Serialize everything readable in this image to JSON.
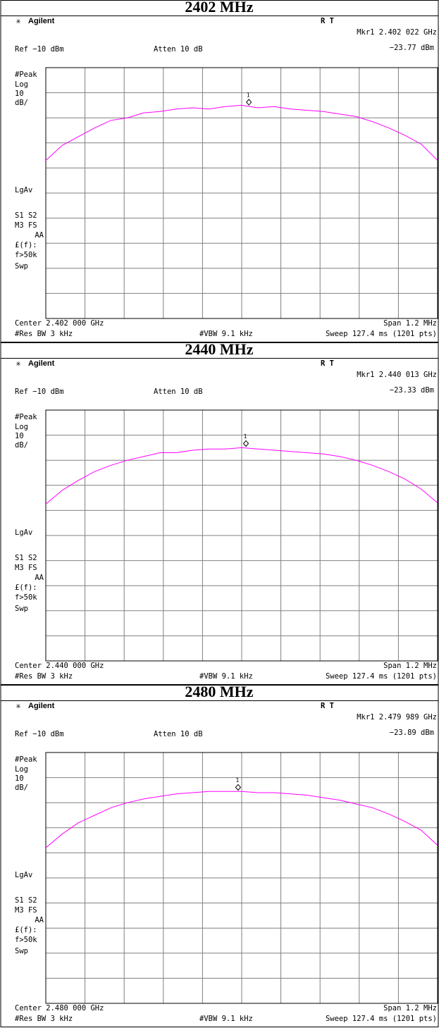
{
  "chart_data": [
    {
      "type": "line",
      "title": "2402 MHz",
      "brand": "Agilent",
      "status": "R  T",
      "marker_readout": [
        "Mkr1  2.402 022 GHz",
        "−23.77 dBm"
      ],
      "ref_level": "Ref −10 dBm",
      "atten": "Atten 10 dB",
      "side_labels": [
        "#Peak",
        "Log",
        "10",
        "dB/",
        "LgAv",
        "S1  S2",
        "M3  FS",
        "AA",
        "£(f):",
        "f>50k",
        "Swp"
      ],
      "center_label": "Center 2.402 000 GHz",
      "span_label": "Span 1.2 MHz",
      "rbw_label": "#Res BW 3 kHz",
      "vbw_label": "#VBW 9.1 kHz",
      "sweep_label": "Sweep 127.4 ms (1201 pts)",
      "x": [
        2.4014,
        2.40145,
        2.4015,
        2.40155,
        2.4016,
        2.40165,
        2.4017,
        2.40175,
        2.4018,
        2.40185,
        2.4019,
        2.40195,
        2.402,
        2.40205,
        2.4021,
        2.40215,
        2.4022,
        2.40225,
        2.4023,
        2.40235,
        2.4024,
        2.40245,
        2.4025,
        2.40255,
        2.4026
      ],
      "series": [
        {
          "color": "#ff00ff",
          "values": [
            -47,
            -41,
            -37.5,
            -34,
            -31,
            -30,
            -28,
            -27.5,
            -26.5,
            -26,
            -26.5,
            -25.5,
            -25,
            -26,
            -25.5,
            -26.5,
            -27,
            -27.5,
            -28.5,
            -29.5,
            -31.5,
            -34,
            -37,
            -40.5,
            -47
          ]
        }
      ],
      "marker": {
        "label": "1",
        "x": 2.402022,
        "y": -23.77
      },
      "xlim": [
        2.4014,
        2.4026
      ],
      "ylim": [
        -110,
        -10
      ],
      "xticks": [
        2.4014,
        2.40152,
        2.40164,
        2.40176,
        2.40188,
        2.402,
        2.40212,
        2.40224,
        2.40236,
        2.40248,
        2.4026
      ],
      "yticks": [
        -110,
        -100,
        -90,
        -80,
        -70,
        -60,
        -50,
        -40,
        -30,
        -20,
        -10
      ],
      "grid": true
    },
    {
      "type": "line",
      "title": "2440 MHz",
      "brand": "Agilent",
      "status": "R  T",
      "marker_readout": [
        "Mkr1  2.440 013 GHz",
        "−23.33 dBm"
      ],
      "ref_level": "Ref −10 dBm",
      "atten": "Atten 10 dB",
      "side_labels": [
        "#Peak",
        "Log",
        "10",
        "dB/",
        "LgAv",
        "S1  S2",
        "M3  FS",
        "AA",
        "£(f):",
        "f>50k",
        "Swp"
      ],
      "center_label": "Center 2.440 000 GHz",
      "span_label": "Span 1.2 MHz",
      "rbw_label": "#Res BW 3 kHz",
      "vbw_label": "#VBW 9.1 kHz",
      "sweep_label": "Sweep 127.4 ms (1201 pts)",
      "x": [
        2.4394,
        2.43945,
        2.4395,
        2.43955,
        2.4396,
        2.43965,
        2.4397,
        2.43975,
        2.4398,
        2.43985,
        2.4399,
        2.43995,
        2.44,
        2.44005,
        2.4401,
        2.44015,
        2.4402,
        2.44025,
        2.4403,
        2.44035,
        2.4404,
        2.44045,
        2.4405,
        2.44055,
        2.4406
      ],
      "series": [
        {
          "color": "#ff00ff",
          "values": [
            -47.5,
            -42,
            -38,
            -34.5,
            -32,
            -30,
            -28.5,
            -27,
            -27,
            -26,
            -25.5,
            -25.5,
            -25,
            -25.5,
            -26,
            -26.5,
            -27,
            -27.5,
            -28.5,
            -30,
            -32,
            -34.5,
            -37.5,
            -41.5,
            -47
          ]
        }
      ],
      "marker": {
        "label": "1",
        "x": 2.440013,
        "y": -23.33
      },
      "xlim": [
        2.4394,
        2.4406
      ],
      "ylim": [
        -110,
        -10
      ],
      "xticks": [
        2.4394,
        2.43952,
        2.43964,
        2.43976,
        2.43988,
        2.44,
        2.44012,
        2.44024,
        2.44036,
        2.44048,
        2.4406
      ],
      "yticks": [
        -110,
        -100,
        -90,
        -80,
        -70,
        -60,
        -50,
        -40,
        -30,
        -20,
        -10
      ],
      "grid": true
    },
    {
      "type": "line",
      "title": "2480 MHz",
      "brand": "Agilent",
      "status": "R  T",
      "marker_readout": [
        "Mkr1  2.479 989 GHz",
        "−23.89 dBm"
      ],
      "ref_level": "Ref −10 dBm",
      "atten": "Atten 10 dB",
      "side_labels": [
        "#Peak",
        "Log",
        "10",
        "dB/",
        "LgAv",
        "S1  S2",
        "M3  FS",
        "AA",
        "£(f):",
        "f>50k",
        "Swp"
      ],
      "center_label": "Center 2.480 000 GHz",
      "span_label": "Span 1.2 MHz",
      "rbw_label": "#Res BW 3 kHz",
      "vbw_label": "#VBW 9.1 kHz",
      "sweep_label": "Sweep 127.4 ms (1201 pts)",
      "x": [
        2.4794,
        2.47945,
        2.4795,
        2.47955,
        2.4796,
        2.47965,
        2.4797,
        2.47975,
        2.4798,
        2.47985,
        2.4799,
        2.47995,
        2.48,
        2.48005,
        2.4801,
        2.48015,
        2.4802,
        2.48025,
        2.4803,
        2.48035,
        2.4804,
        2.48045,
        2.4805,
        2.48055,
        2.4806
      ],
      "series": [
        {
          "color": "#ff00ff",
          "values": [
            -48,
            -42.5,
            -38,
            -35,
            -32,
            -30,
            -28.5,
            -27.5,
            -26.5,
            -26,
            -25.5,
            -25.5,
            -25.5,
            -26,
            -26,
            -26.5,
            -27,
            -28,
            -29,
            -30.5,
            -32,
            -34.5,
            -37.5,
            -41,
            -47
          ]
        }
      ],
      "marker": {
        "label": "1",
        "x": 2.479989,
        "y": -23.89
      },
      "xlim": [
        2.4794,
        2.4806
      ],
      "ylim": [
        -110,
        -10
      ],
      "xticks": [
        2.4794,
        2.47952,
        2.47964,
        2.47976,
        2.47988,
        2.48,
        2.48012,
        2.48024,
        2.48036,
        2.48048,
        2.4806
      ],
      "yticks": [
        -110,
        -100,
        -90,
        -80,
        -70,
        -60,
        -50,
        -40,
        -30,
        -20,
        -10
      ],
      "grid": true
    }
  ]
}
